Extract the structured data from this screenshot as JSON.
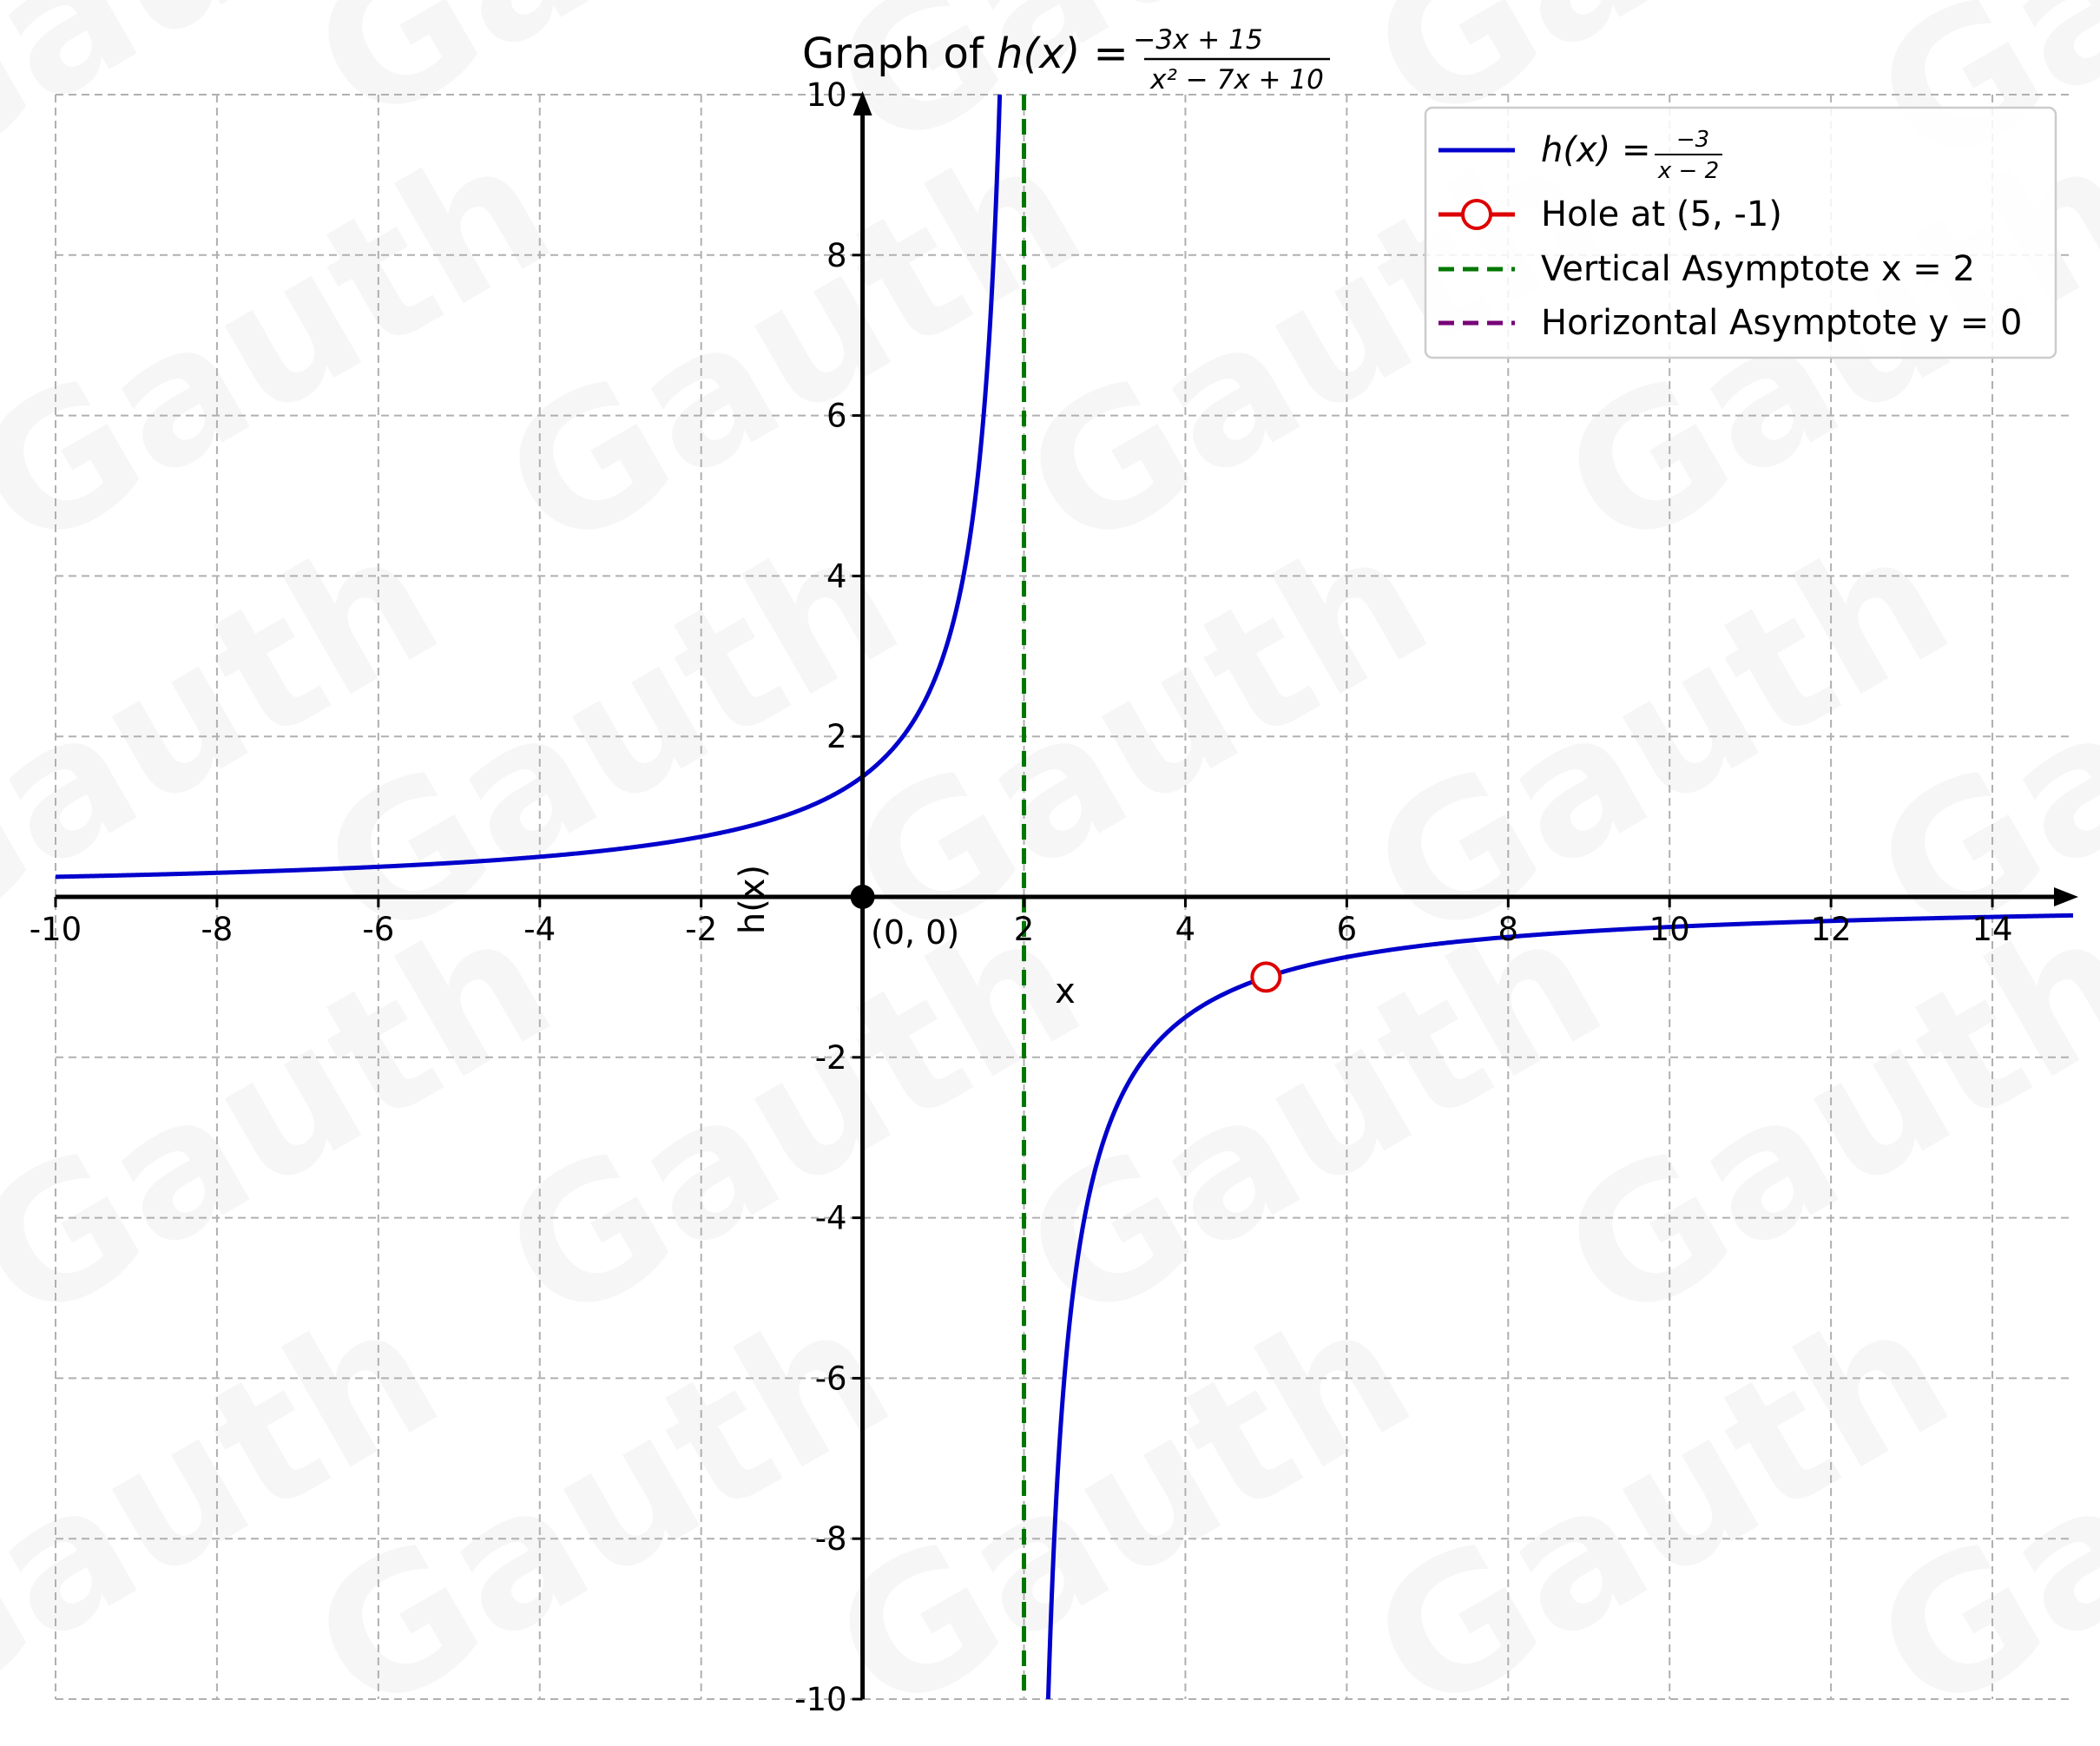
{
  "chart_data": {
    "type": "line",
    "title": {
      "prefix": "Graph of ",
      "func": "h(x) = ",
      "numerator": "−3x + 15",
      "denominator": "x² − 7x + 10"
    },
    "xlabel": "x",
    "ylabel": "h(x)",
    "xlim": [
      -10,
      15
    ],
    "ylim": [
      -10,
      10
    ],
    "x_ticks": [
      -10,
      -8,
      -6,
      -4,
      -2,
      2,
      4,
      6,
      8,
      10,
      12,
      14
    ],
    "x_tick_labels": [
      "-10",
      "-8",
      "-6",
      "-4",
      "-2",
      "2",
      "4",
      "6",
      "8",
      "10",
      "12",
      "14"
    ],
    "y_ticks": [
      -10,
      -8,
      -6,
      -4,
      -2,
      2,
      4,
      6,
      8,
      10
    ],
    "y_tick_labels": [
      "-10",
      "-8",
      "-6",
      "-4",
      "-2",
      "2",
      "4",
      "6",
      "8",
      "10"
    ],
    "grid": true,
    "legend_position": "top-right",
    "function": {
      "name_prefix": "h(x) = ",
      "name_numerator": "−3",
      "name_denominator": "x − 2",
      "numerator_coefficient": -3,
      "pole": 2,
      "color": "#0000cc"
    },
    "hole": {
      "x": 5,
      "y": -1,
      "label": "Hole at (5, -1)",
      "color": "#dd0000"
    },
    "vertical_asymptote": {
      "x": 2,
      "label": "Vertical Asymptote x = 2",
      "color": "#007700"
    },
    "horizontal_asymptote": {
      "y": 0,
      "label": "Horizontal Asymptote y = 0",
      "color": "#770077"
    },
    "origin_point": {
      "x": 0,
      "y": 0,
      "label": "(0, 0)"
    }
  },
  "watermark": "Gauth"
}
